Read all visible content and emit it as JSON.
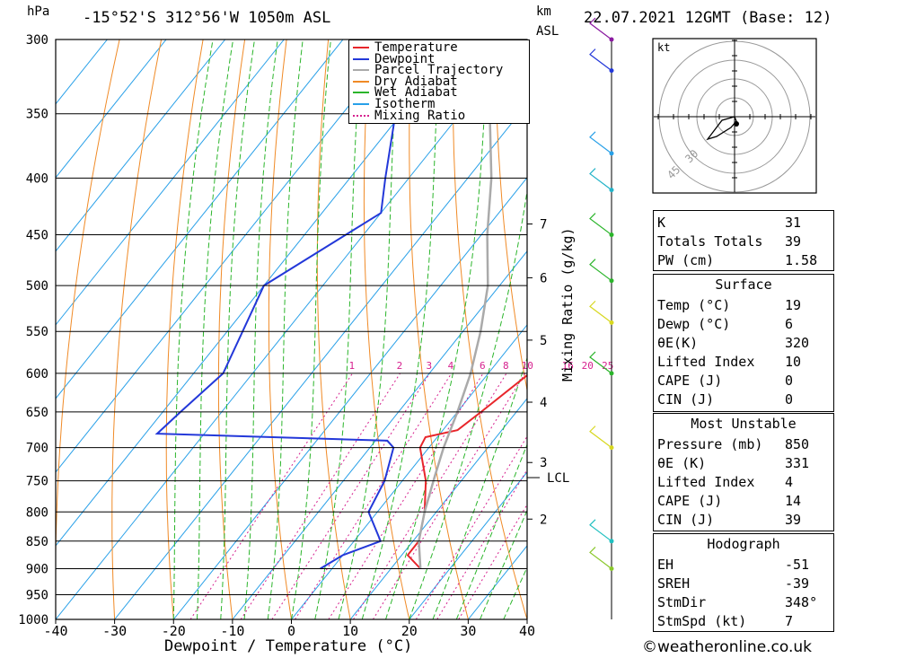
{
  "header": {
    "hpa": "hPa",
    "location": "-15°52'S 312°56'W 1050m ASL",
    "km": "km",
    "asl": "ASL",
    "datetime": "22.07.2021 12GMT (Base: 12)"
  },
  "footer": {
    "copyright": "©weatheronline.co.uk"
  },
  "chart_data": {
    "type": "line",
    "subtype": "skew-T log-P diagram",
    "xlabel": "Dewpoint / Temperature (°C)",
    "ylabel": "hPa",
    "xlim": [
      -40,
      40
    ],
    "ylim": [
      1000,
      300
    ],
    "x_ticks": [
      "-40",
      "-30",
      "-20",
      "-10",
      "0",
      "10",
      "20",
      "30",
      "40"
    ],
    "pressure_levels": [
      300,
      350,
      400,
      450,
      500,
      550,
      600,
      650,
      700,
      750,
      800,
      850,
      900,
      950,
      1000
    ],
    "km_ticks": [
      {
        "label": "7",
        "p": 440
      },
      {
        "label": "6",
        "p": 492
      },
      {
        "label": "5",
        "p": 560
      },
      {
        "label": "4",
        "p": 637
      },
      {
        "label": "3",
        "p": 722
      },
      {
        "label": "2",
        "p": 812
      }
    ],
    "lcl": {
      "label": "LCL",
      "p": 745
    },
    "mixing_ratio_axis": "Mixing Ratio (g/kg)",
    "mixing_ratio_labels": [
      "1",
      "2",
      "3",
      "4",
      "6",
      "8",
      "10",
      "16",
      "20",
      "25"
    ],
    "legend": [
      "Temperature",
      "Dewpoint",
      "Parcel Trajectory",
      "Dry Adiabat",
      "Wet Adiabat",
      "Isotherm",
      "Mixing Ratio"
    ],
    "colors": {
      "temperature": "#e8262b",
      "dewpoint": "#2338d9",
      "parcel": "#aaaaaa",
      "dry": "#f08a26",
      "wet": "#2bb52b",
      "isotherm": "#28a0e8",
      "mixing": "#d6208e"
    },
    "series": [
      {
        "name": "Temperature",
        "points": [
          [
            300,
            -31
          ],
          [
            350,
            -24
          ],
          [
            400,
            -16
          ],
          [
            450,
            -9
          ],
          [
            500,
            -2
          ],
          [
            550,
            4.6
          ],
          [
            600,
            7
          ],
          [
            650,
            4
          ],
          [
            675,
            2.5
          ],
          [
            685,
            -2
          ],
          [
            700,
            -1.5
          ],
          [
            750,
            4
          ],
          [
            800,
            8
          ],
          [
            850,
            11
          ],
          [
            875,
            11
          ],
          [
            900,
            15
          ]
        ]
      },
      {
        "name": "Dewpoint",
        "points": [
          [
            300,
            -58
          ],
          [
            350,
            -51
          ],
          [
            400,
            -44
          ],
          [
            430,
            -40
          ],
          [
            500,
            -50
          ],
          [
            600,
            -45
          ],
          [
            650,
            -47
          ],
          [
            680,
            -48
          ],
          [
            690,
            -8
          ],
          [
            700,
            -6
          ],
          [
            750,
            -3
          ],
          [
            800,
            -1.5
          ],
          [
            850,
            4.5
          ],
          [
            875,
            0
          ],
          [
            900,
            -2
          ]
        ]
      },
      {
        "name": "Parcel Trajectory",
        "points": [
          [
            300,
            -44
          ],
          [
            350,
            -35
          ],
          [
            400,
            -26
          ],
          [
            450,
            -19
          ],
          [
            500,
            -12
          ],
          [
            550,
            -7
          ],
          [
            600,
            -3
          ],
          [
            650,
            0
          ],
          [
            700,
            2.5
          ],
          [
            745,
            5
          ],
          [
            800,
            8
          ],
          [
            850,
            11
          ],
          [
            900,
            15
          ]
        ]
      }
    ]
  },
  "hodograph": {
    "unit": "kt",
    "rings": [
      "30",
      "45"
    ]
  },
  "indices": [
    {
      "label": "K",
      "value": "31"
    },
    {
      "label": "Totals Totals",
      "value": "39"
    },
    {
      "label": "PW (cm)",
      "value": "1.58"
    }
  ],
  "surface": {
    "title": "Surface",
    "rows": [
      {
        "label": "Temp (°C)",
        "value": "19"
      },
      {
        "label": "Dewp (°C)",
        "value": "6"
      },
      {
        "label": "θE(K)",
        "value": "320"
      },
      {
        "label": "Lifted Index",
        "value": "10"
      },
      {
        "label": "CAPE (J)",
        "value": "0"
      },
      {
        "label": "CIN (J)",
        "value": "0"
      }
    ]
  },
  "most_unstable": {
    "title": "Most Unstable",
    "rows": [
      {
        "label": "Pressure (mb)",
        "value": "850"
      },
      {
        "label": "θE (K)",
        "value": "331"
      },
      {
        "label": "Lifted Index",
        "value": "4"
      },
      {
        "label": "CAPE (J)",
        "value": "14"
      },
      {
        "label": "CIN (J)",
        "value": "39"
      }
    ]
  },
  "hodograph_table": {
    "title": "Hodograph",
    "rows": [
      {
        "label": "EH",
        "value": "-51"
      },
      {
        "label": "SREH",
        "value": "-39"
      },
      {
        "label": "StmDir",
        "value": "348°"
      },
      {
        "label": "StmSpd (kt)",
        "value": "7"
      }
    ]
  }
}
